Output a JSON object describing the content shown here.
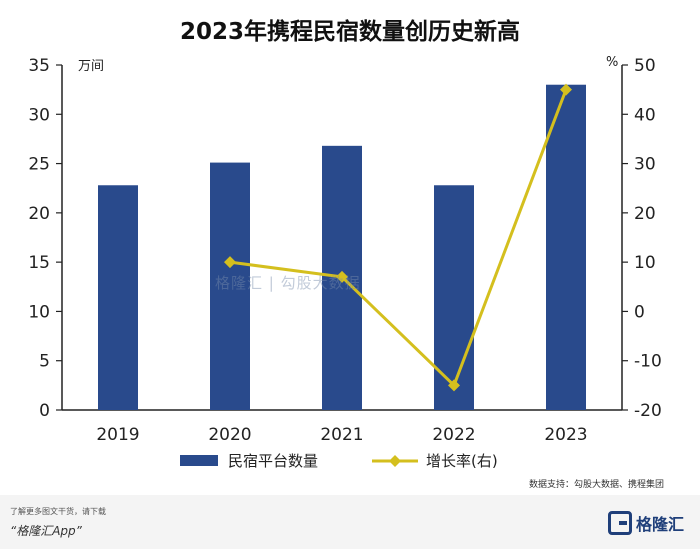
{
  "title": "2023年携程民宿数量创历史新高",
  "chart_data": {
    "type": "bar+line",
    "categories": [
      "2019",
      "2020",
      "2021",
      "2022",
      "2023"
    ],
    "series": [
      {
        "name": "民宿平台数量",
        "type": "bar",
        "axis": "left",
        "color": "#294a8c",
        "values": [
          22.8,
          25.1,
          26.8,
          22.8,
          33.0
        ]
      },
      {
        "name": "增长率(右)",
        "type": "line",
        "axis": "right",
        "color": "#d4bf1e",
        "values": [
          null,
          10,
          7,
          -15,
          45
        ]
      }
    ],
    "left_axis": {
      "unit": "万间",
      "ylim": [
        0,
        35
      ],
      "ticks": [
        0,
        5,
        10,
        15,
        20,
        25,
        30,
        35
      ]
    },
    "right_axis": {
      "unit": "%",
      "ylim": [
        -20,
        50
      ],
      "ticks": [
        -20,
        -10,
        0,
        10,
        20,
        30,
        40,
        50
      ]
    },
    "grid": false,
    "legend_placement": "bottom"
  },
  "watermark": "格隆汇 | 勾股大数据",
  "source": "数据支持：勾股大数据、携程集团",
  "footer": {
    "tip": "了解更多图文干货，请下载",
    "app": "“格隆汇App”",
    "logo": "格隆汇"
  }
}
